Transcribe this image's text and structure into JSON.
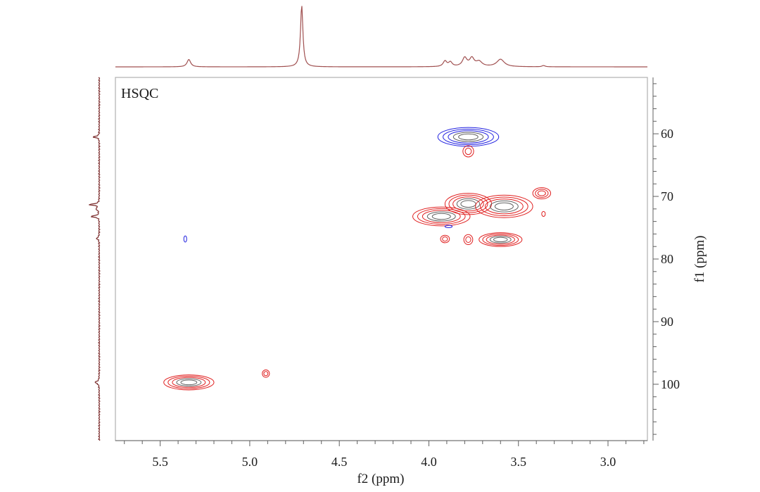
{
  "chart_data": {
    "type": "heatmap",
    "title": "HSQC",
    "xlabel": "f2 (ppm)",
    "ylabel": "f1 (ppm)",
    "x_ticks": [
      "5.5",
      "5.0",
      "4.5",
      "4.0",
      "3.5",
      "3.0"
    ],
    "y_ticks": [
      "60",
      "70",
      "80",
      "90",
      "100"
    ],
    "xlim": [
      5.75,
      2.78
    ],
    "ylim": [
      51,
      109
    ],
    "grid": false,
    "colors": {
      "positive": "#e02020",
      "negative": "#2020e0",
      "inner": "#606060",
      "projection": "#a05050",
      "projection_dark": "#7a2a2a"
    },
    "peaks": [
      {
        "x": 5.34,
        "y": 99.7,
        "rx": 0.14,
        "ry": 1.2,
        "sign": "positive",
        "levels": 5
      },
      {
        "x": 4.91,
        "y": 98.3,
        "rx": 0.02,
        "ry": 0.6,
        "sign": "positive",
        "levels": 2
      },
      {
        "x": 3.78,
        "y": 60.5,
        "rx": 0.17,
        "ry": 1.5,
        "sign": "negative",
        "levels": 5
      },
      {
        "x": 3.78,
        "y": 62.8,
        "rx": 0.03,
        "ry": 0.9,
        "sign": "positive",
        "levels": 2
      },
      {
        "x": 3.93,
        "y": 73.2,
        "rx": 0.16,
        "ry": 1.5,
        "sign": "positive",
        "levels": 5
      },
      {
        "x": 3.78,
        "y": 71.2,
        "rx": 0.13,
        "ry": 1.7,
        "sign": "positive",
        "levels": 5
      },
      {
        "x": 3.58,
        "y": 71.6,
        "rx": 0.16,
        "ry": 1.8,
        "sign": "positive",
        "levels": 5
      },
      {
        "x": 3.6,
        "y": 76.9,
        "rx": 0.12,
        "ry": 1.1,
        "sign": "positive",
        "levels": 5
      },
      {
        "x": 3.37,
        "y": 69.5,
        "rx": 0.05,
        "ry": 0.9,
        "sign": "positive",
        "levels": 3
      },
      {
        "x": 3.36,
        "y": 72.8,
        "rx": 0.01,
        "ry": 0.4,
        "sign": "positive",
        "levels": 1
      },
      {
        "x": 3.91,
        "y": 76.8,
        "rx": 0.025,
        "ry": 0.6,
        "sign": "positive",
        "levels": 2
      },
      {
        "x": 3.78,
        "y": 76.9,
        "rx": 0.025,
        "ry": 0.8,
        "sign": "positive",
        "levels": 2
      },
      {
        "x": 3.89,
        "y": 74.8,
        "rx": 0.02,
        "ry": 0.2,
        "sign": "negative",
        "levels": 1
      },
      {
        "x": 5.36,
        "y": 76.8,
        "rx": 0.008,
        "ry": 0.5,
        "sign": "negative",
        "levels": 1
      }
    ],
    "f2_projection": [
      {
        "x": 5.34,
        "h": 0.12,
        "w": 0.012
      },
      {
        "x": 4.71,
        "h": 1.0,
        "w": 0.008
      },
      {
        "x": 3.91,
        "h": 0.09,
        "w": 0.012
      },
      {
        "x": 3.88,
        "h": 0.07,
        "w": 0.012
      },
      {
        "x": 3.8,
        "h": 0.14,
        "w": 0.015
      },
      {
        "x": 3.76,
        "h": 0.13,
        "w": 0.015
      },
      {
        "x": 3.72,
        "h": 0.08,
        "w": 0.02
      },
      {
        "x": 3.6,
        "h": 0.12,
        "w": 0.025
      },
      {
        "x": 3.36,
        "h": 0.02,
        "w": 0.01
      }
    ],
    "f1_projection": [
      {
        "y": 60.5,
        "h": 0.32,
        "w": 0.12
      },
      {
        "y": 71.3,
        "h": 0.5,
        "w": 0.12
      },
      {
        "y": 72.0,
        "h": 0.15,
        "w": 0.2
      },
      {
        "y": 73.2,
        "h": 0.45,
        "w": 0.12
      },
      {
        "y": 76.7,
        "h": 0.12,
        "w": 0.2
      },
      {
        "y": 99.7,
        "h": 0.2,
        "w": 0.2
      }
    ]
  }
}
